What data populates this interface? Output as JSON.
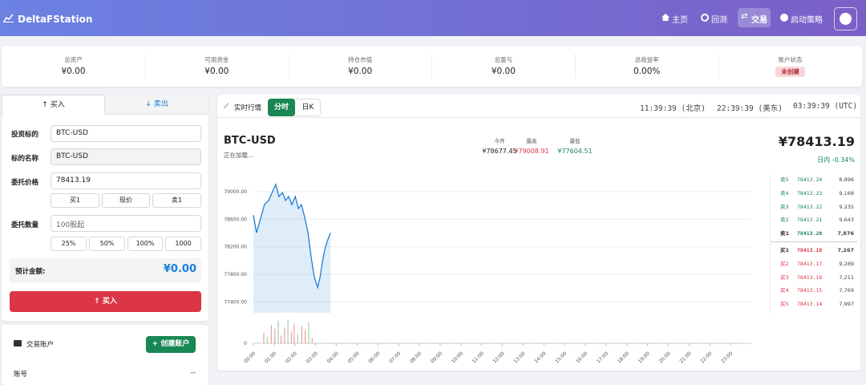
{
  "header": {
    "brand": "DeltaFStation",
    "nav": [
      "主页",
      "回测",
      "交易",
      "启动策略"
    ]
  },
  "stats": [
    {
      "label": "总资产",
      "value": "¥0.00"
    },
    {
      "label": "可用资金",
      "value": "¥0.00"
    },
    {
      "label": "持仓市值",
      "value": "¥0.00"
    },
    {
      "label": "总盈亏",
      "value": "¥0.00"
    },
    {
      "label": "总收益率",
      "value": "0.00%"
    },
    {
      "label": "账户状态",
      "value": "未创建"
    }
  ],
  "order": {
    "tabs": [
      "买入",
      "卖出"
    ],
    "symbol_label": "投资标的",
    "symbol": "BTC-USD",
    "name_label": "标的名称",
    "name": "BTC-USD",
    "price_label": "委托价格",
    "price": "78413.19",
    "price_buttons": [
      "买1",
      "现价",
      "卖1"
    ],
    "qty_label": "委托数量",
    "qty_placeholder": "100股起",
    "qty_buttons": [
      "25%",
      "50%",
      "100%",
      "1000"
    ],
    "estimate_label": "预计金额:",
    "estimate": "¥0.00",
    "submit": "买入"
  },
  "account": {
    "title": "交易账户",
    "create": "创建账户",
    "rows": [
      {
        "label": "账号",
        "value": "--"
      }
    ]
  },
  "market": {
    "title": "实时行情",
    "tabs": [
      "分时",
      "日K"
    ],
    "clocks": [
      "11:39:39 (北京)",
      "22:39:39 (美东)",
      "03:39:39 (UTC)"
    ],
    "symbol": "BTC-USD",
    "status": "正在加载...",
    "quote": [
      {
        "label": "今开",
        "value": "¥78677.45"
      },
      {
        "label": "最高",
        "value": "¥79008.91"
      },
      {
        "label": "最低",
        "value": "¥77604.51"
      }
    ],
    "price": "¥78413.19",
    "change": "日内 -0.34%"
  },
  "orderbook": {
    "asks": [
      {
        "label": "卖5",
        "price": "78413.24",
        "volume": "8,896"
      },
      {
        "label": "卖4",
        "price": "78413.23",
        "volume": "9,168"
      },
      {
        "label": "卖3",
        "price": "78413.22",
        "volume": "9,235"
      },
      {
        "label": "卖2",
        "price": "78413.21",
        "volume": "9,643"
      },
      {
        "label": "卖1",
        "price": "78413.20",
        "volume": "7,876"
      }
    ],
    "bids": [
      {
        "label": "买1",
        "price": "78413.18",
        "volume": "7,267"
      },
      {
        "label": "买2",
        "price": "78413.17",
        "volume": "9,289"
      },
      {
        "label": "买3",
        "price": "78413.16",
        "volume": "7,211"
      },
      {
        "label": "买4",
        "price": "78413.15",
        "volume": "7,769"
      },
      {
        "label": "买5",
        "price": "78413.14",
        "volume": "7,997"
      }
    ]
  },
  "chart_data": {
    "type": "line",
    "color": "#1e7fd8",
    "grid": true,
    "x": [
      0,
      9,
      21,
      32,
      44,
      56,
      65,
      74,
      84,
      93,
      102,
      111,
      121,
      130,
      139,
      148,
      158,
      167,
      176,
      186,
      193,
      200,
      207,
      214,
      223
    ],
    "values": [
      78661,
      78404,
      78615,
      78813,
      78872,
      79012,
      79105,
      78930,
      78988,
      78872,
      78930,
      78813,
      78930,
      78755,
      78813,
      78638,
      78404,
      78054,
      77762,
      77610,
      77762,
      77996,
      78171,
      78288,
      78404
    ],
    "xlim": [
      0,
      1440
    ],
    "xticks": [
      {
        "value": 0,
        "label": "00:00"
      },
      {
        "value": 60,
        "label": "01:00"
      },
      {
        "value": 120,
        "label": "02:00"
      },
      {
        "value": 180,
        "label": "03:00"
      },
      {
        "value": 240,
        "label": "04:00"
      },
      {
        "value": 300,
        "label": "05:00"
      },
      {
        "value": 360,
        "label": "06:00"
      },
      {
        "value": 420,
        "label": "07:00"
      },
      {
        "value": 480,
        "label": "08:00"
      },
      {
        "value": 540,
        "label": "09:00"
      },
      {
        "value": 600,
        "label": "10:00"
      },
      {
        "value": 660,
        "label": "11:00"
      },
      {
        "value": 720,
        "label": "12:00"
      },
      {
        "value": 780,
        "label": "13:00"
      },
      {
        "value": 840,
        "label": "14:00"
      },
      {
        "value": 900,
        "label": "15:00"
      },
      {
        "value": 960,
        "label": "16:00"
      },
      {
        "value": 1020,
        "label": "17:00"
      },
      {
        "value": 1080,
        "label": "18:00"
      },
      {
        "value": 1140,
        "label": "19:00"
      },
      {
        "value": 1200,
        "label": "20:00"
      },
      {
        "value": 1260,
        "label": "21:00"
      },
      {
        "value": 1320,
        "label": "22:00"
      },
      {
        "value": 1380,
        "label": "23:00"
      }
    ],
    "ylim": [
      77240,
      79280
    ],
    "yticks": [
      {
        "value": 77400,
        "label": "77400.00"
      },
      {
        "value": 77800,
        "label": "77800.00"
      },
      {
        "value": 78200,
        "label": "78200.00"
      },
      {
        "value": 78600,
        "label": "78600.00"
      },
      {
        "value": 79000,
        "label": "79000.00"
      }
    ],
    "volume": {
      "x": [
        30,
        40,
        52,
        62,
        72,
        80,
        90,
        100,
        110,
        118,
        128,
        140,
        150,
        160,
        170
      ],
      "values": [
        40,
        25,
        70,
        55,
        85,
        30,
        60,
        90,
        45,
        75,
        35,
        65,
        50,
        80,
        20
      ],
      "colors": [
        "#e8a0a0",
        "#9fd4a8",
        "#e8a0a0",
        "#e8a0a0",
        "#9fd4a8",
        "#e8a0a0",
        "#e8a0a0",
        "#9fd4a8",
        "#e8a0a0",
        "#e8a0a0",
        "#9fd4a8",
        "#e8a0a0",
        "#e8a0a0",
        "#9fd4a8",
        "#e8a0a0"
      ]
    },
    "y2lim": [
      0,
      100
    ],
    "y2ticks": [
      0
    ]
  }
}
